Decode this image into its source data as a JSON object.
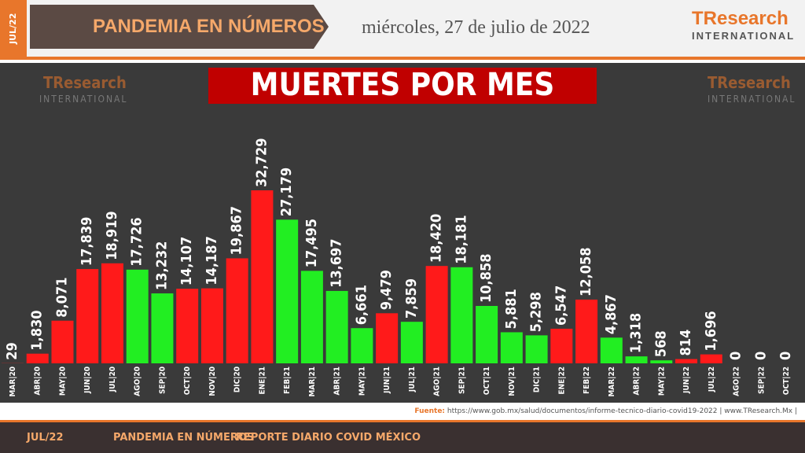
{
  "header": {
    "badge": "JUL/22",
    "section": "PANDEMIA EN NÚMEROS",
    "date": "miércoles, 27 de julio de 2022"
  },
  "logo": {
    "name": "TResearch",
    "tagline": "INTERNATIONAL"
  },
  "chart_data": {
    "type": "bar",
    "title": "MUERTES POR MES",
    "categories": [
      "MAR|20",
      "ABR|20",
      "MAY|20",
      "JUN|20",
      "JUL|20",
      "AGO|20",
      "SEP|20",
      "OCT|20",
      "NOV|20",
      "DIC|20",
      "ENE|21",
      "FEB|21",
      "MAR|21",
      "ABR|21",
      "MAY|21",
      "JUN|21",
      "JUL|21",
      "AGO|21",
      "SEP|21",
      "OCT|21",
      "NOV|21",
      "DIC|21",
      "ENE|22",
      "FEB|22",
      "MAR|22",
      "ABR|22",
      "MAY|22",
      "JUN|22",
      "JUL|22",
      "AGO|22",
      "SEP|22",
      "OCT|22"
    ],
    "values": [
      29,
      1830,
      8071,
      17839,
      18919,
      17726,
      13232,
      14107,
      14187,
      19867,
      32729,
      27179,
      17495,
      13697,
      6661,
      9479,
      7859,
      18420,
      18181,
      10858,
      5881,
      5298,
      6547,
      12058,
      4867,
      1318,
      568,
      814,
      1696,
      0,
      0,
      0
    ],
    "value_labels": [
      "29",
      "1,830",
      "8,071",
      "17,839",
      "18,919",
      "17,726",
      "13,232",
      "14,107",
      "14,187",
      "19,867",
      "32,729",
      "27,179",
      "17,495",
      "13,697",
      "6,661",
      "9,479",
      "7,859",
      "18,420",
      "18,181",
      "10,858",
      "5,881",
      "5,298",
      "6,547",
      "12,058",
      "4,867",
      "1,318",
      "568",
      "814",
      "1,696",
      "0",
      "0",
      "0"
    ],
    "colors": [
      "#ff1a1a",
      "#ff1a1a",
      "#ff1a1a",
      "#ff1a1a",
      "#ff1a1a",
      "#22ee22",
      "#22ee22",
      "#ff1a1a",
      "#ff1a1a",
      "#ff1a1a",
      "#ff1a1a",
      "#22ee22",
      "#22ee22",
      "#22ee22",
      "#22ee22",
      "#ff1a1a",
      "#22ee22",
      "#ff1a1a",
      "#22ee22",
      "#22ee22",
      "#22ee22",
      "#22ee22",
      "#ff1a1a",
      "#ff1a1a",
      "#22ee22",
      "#22ee22",
      "#22ee22",
      "#ff1a1a",
      "#ff1a1a",
      "#22ee22",
      "#22ee22",
      "#22ee22"
    ]
  },
  "source": {
    "label": "Fuente:",
    "text": "https://www.gob.mx/salud/documentos/informe-tecnico-diario-covid19-2022 | www.TResearch.Mx |"
  },
  "footer": {
    "badge": "JUL/22",
    "section": "PANDEMIA EN NÚMEROS",
    "report": "REPORTE DIARIO COVID MÉXICO"
  }
}
